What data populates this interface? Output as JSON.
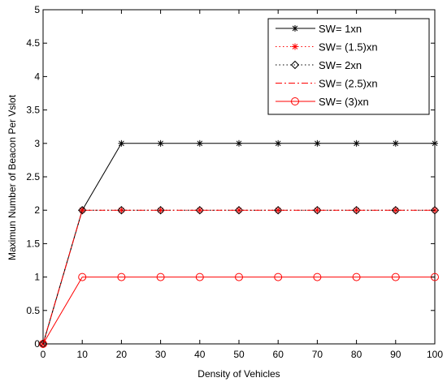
{
  "chart_data": {
    "type": "line",
    "xlabel": "Density of Vehicles",
    "ylabel": "Maximun Number of Beacon Per Vslot",
    "xlim": [
      0,
      100
    ],
    "ylim": [
      0,
      5
    ],
    "x_ticks": [
      0,
      10,
      20,
      30,
      40,
      50,
      60,
      70,
      80,
      90,
      100
    ],
    "y_ticks": [
      0,
      0.5,
      1,
      1.5,
      2,
      2.5,
      3,
      3.5,
      4,
      4.5,
      5
    ],
    "grid": false,
    "legend_position": "top-right",
    "x": [
      0,
      10,
      20,
      30,
      40,
      50,
      60,
      70,
      80,
      90,
      100
    ],
    "series": [
      {
        "name": "SW= 1xn",
        "values": [
          0,
          2,
          3,
          3,
          3,
          3,
          3,
          3,
          3,
          3,
          3
        ],
        "color": "#000000",
        "line_style": "solid",
        "marker": "asterisk"
      },
      {
        "name": "SW= (1.5)xn",
        "values": [
          0,
          2,
          2,
          2,
          2,
          2,
          2,
          2,
          2,
          2,
          2
        ],
        "color": "#ff0000",
        "line_style": "dotted",
        "marker": "asterisk"
      },
      {
        "name": "SW= 2xn",
        "values": [
          0,
          2,
          2,
          2,
          2,
          2,
          2,
          2,
          2,
          2,
          2
        ],
        "color": "#000000",
        "line_style": "dotted",
        "marker": "diamond"
      },
      {
        "name": "SW= (2.5)xn",
        "values": [
          0,
          2,
          2,
          2,
          2,
          2,
          2,
          2,
          2,
          2,
          2
        ],
        "color": "#ff0000",
        "line_style": "dashdot",
        "marker": "none"
      },
      {
        "name": "SW= (3)xn",
        "values": [
          0,
          1,
          1,
          1,
          1,
          1,
          1,
          1,
          1,
          1,
          1
        ],
        "color": "#ff0000",
        "line_style": "solid",
        "marker": "circle"
      }
    ]
  }
}
